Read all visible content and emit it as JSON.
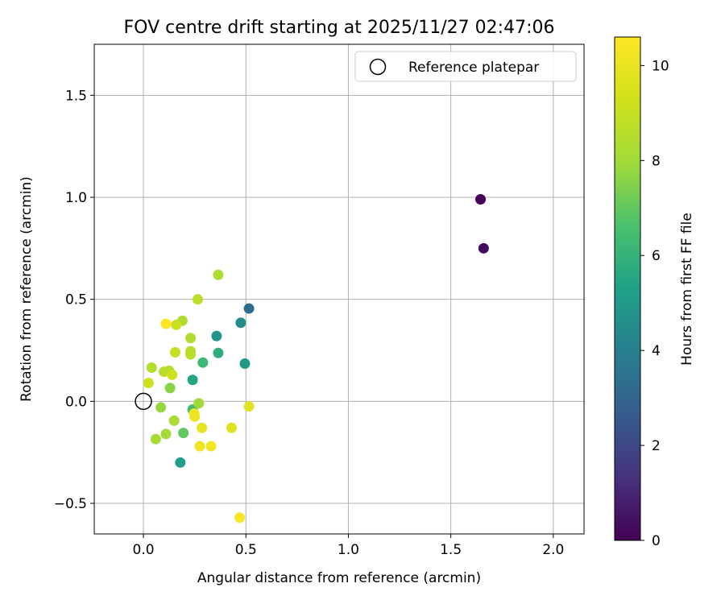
{
  "chart_data": {
    "type": "scatter",
    "title": "FOV centre drift starting at 2025/11/27 02:47:06",
    "xlabel": "Angular distance from reference (arcmin)",
    "ylabel": "Rotation from reference (arcmin)",
    "xlim": [
      -0.24,
      2.15
    ],
    "ylim": [
      -0.65,
      1.75
    ],
    "xticks": [
      0.0,
      0.5,
      1.0,
      1.5,
      2.0
    ],
    "xtick_labels": [
      "0.0",
      "0.5",
      "1.0",
      "1.5",
      "2.0"
    ],
    "yticks": [
      -0.5,
      0.0,
      0.5,
      1.0,
      1.5
    ],
    "ytick_labels": [
      "−0.5",
      "0.0",
      "0.5",
      "1.0",
      "1.5"
    ],
    "grid": true,
    "legend": {
      "position": "top-right",
      "entries": [
        "Reference platepar"
      ]
    },
    "reference_point": {
      "x": 0.0,
      "y": 0.0,
      "label": "Reference platepar"
    },
    "colorbar": {
      "label": "Hours from first FF file",
      "range": [
        0,
        10.6
      ],
      "ticks": [
        0,
        2,
        4,
        6,
        8,
        10
      ],
      "tick_labels": [
        "0",
        "2",
        "4",
        "6",
        "8",
        "10"
      ],
      "colormap": "viridis"
    },
    "points": [
      {
        "x": 1.645,
        "y": 0.99,
        "hours": 0.05
      },
      {
        "x": 1.66,
        "y": 0.75,
        "hours": 0.3
      },
      {
        "x": 0.515,
        "y": 0.455,
        "hours": 3.3
      },
      {
        "x": 0.475,
        "y": 0.385,
        "hours": 4.5
      },
      {
        "x": 0.357,
        "y": 0.32,
        "hours": 4.8
      },
      {
        "x": 0.495,
        "y": 0.185,
        "hours": 5.0
      },
      {
        "x": 0.18,
        "y": -0.3,
        "hours": 5.2
      },
      {
        "x": 0.24,
        "y": 0.105,
        "hours": 5.5
      },
      {
        "x": 0.365,
        "y": 0.237,
        "hours": 5.8
      },
      {
        "x": 0.29,
        "y": 0.19,
        "hours": 6.2
      },
      {
        "x": 0.24,
        "y": -0.04,
        "hours": 6.5
      },
      {
        "x": 0.195,
        "y": -0.155,
        "hours": 7.0
      },
      {
        "x": 0.13,
        "y": 0.065,
        "hours": 7.6
      },
      {
        "x": 0.085,
        "y": -0.03,
        "hours": 7.8
      },
      {
        "x": 0.27,
        "y": -0.01,
        "hours": 8.0
      },
      {
        "x": 0.11,
        "y": -0.16,
        "hours": 8.1
      },
      {
        "x": 0.06,
        "y": -0.185,
        "hours": 8.2
      },
      {
        "x": 0.15,
        "y": -0.095,
        "hours": 8.2
      },
      {
        "x": 0.365,
        "y": 0.62,
        "hours": 8.3
      },
      {
        "x": 0.19,
        "y": 0.395,
        "hours": 8.4
      },
      {
        "x": 0.23,
        "y": 0.31,
        "hours": 8.4
      },
      {
        "x": 0.23,
        "y": 0.245,
        "hours": 8.5
      },
      {
        "x": 0.125,
        "y": 0.15,
        "hours": 8.5
      },
      {
        "x": 0.04,
        "y": 0.165,
        "hours": 8.5
      },
      {
        "x": 0.1,
        "y": 0.145,
        "hours": 8.6
      },
      {
        "x": 0.23,
        "y": 0.23,
        "hours": 8.6
      },
      {
        "x": 0.265,
        "y": 0.5,
        "hours": 8.7
      },
      {
        "x": 0.155,
        "y": 0.24,
        "hours": 9.0
      },
      {
        "x": 0.16,
        "y": 0.375,
        "hours": 9.1
      },
      {
        "x": 0.025,
        "y": 0.09,
        "hours": 9.2
      },
      {
        "x": 0.14,
        "y": 0.13,
        "hours": 9.2
      },
      {
        "x": 0.43,
        "y": -0.13,
        "hours": 9.7
      },
      {
        "x": 0.515,
        "y": -0.025,
        "hours": 9.8
      },
      {
        "x": 0.285,
        "y": -0.13,
        "hours": 10.0
      },
      {
        "x": 0.25,
        "y": -0.075,
        "hours": 10.1
      },
      {
        "x": 0.248,
        "y": -0.06,
        "hours": 10.2
      },
      {
        "x": 0.275,
        "y": -0.22,
        "hours": 10.2
      },
      {
        "x": 0.33,
        "y": -0.22,
        "hours": 10.3
      },
      {
        "x": 0.47,
        "y": -0.57,
        "hours": 10.4
      },
      {
        "x": 0.11,
        "y": 0.38,
        "hours": 10.6
      }
    ]
  }
}
